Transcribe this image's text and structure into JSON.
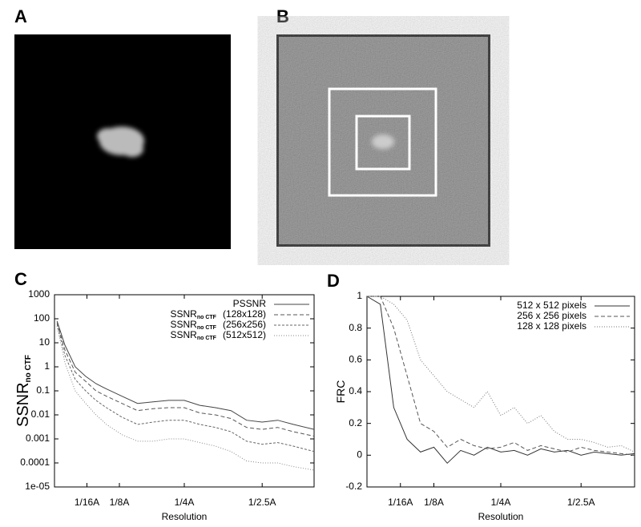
{
  "images": [
    {
      "label": "A"
    },
    {
      "label": "B"
    }
  ],
  "chart_data": [
    {
      "type": "line",
      "label": "C",
      "yscale": "log",
      "ylabel": "SSNR",
      "ylabel_sub": "no CTF",
      "xlabel": "Resolution",
      "xlim": [
        0,
        0.5
      ],
      "xticks": [
        {
          "value": 0.0625,
          "label": "1/16A"
        },
        {
          "value": 0.125,
          "label": "1/8A"
        },
        {
          "value": 0.25,
          "label": "1/4A"
        },
        {
          "value": 0.4,
          "label": "1/2.5A"
        }
      ],
      "ylim": [
        1e-05,
        1000
      ],
      "yticks": [
        1000,
        100,
        10,
        1,
        0.1,
        0.01,
        0.001,
        0.0001,
        {
          "value": 1e-05,
          "label": "1e-05"
        }
      ],
      "legend": "top-right",
      "x": [
        0.005,
        0.02,
        0.04,
        0.06,
        0.08,
        0.1,
        0.13,
        0.16,
        0.19,
        0.22,
        0.25,
        0.28,
        0.31,
        0.34,
        0.37,
        0.4,
        0.43,
        0.46,
        0.5
      ],
      "series": [
        {
          "name": "PSSNR",
          "color": "#444444",
          "dash": "none",
          "values": [
            80,
            8,
            1,
            0.4,
            0.2,
            0.12,
            0.06,
            0.03,
            0.035,
            0.04,
            0.04,
            0.025,
            0.02,
            0.015,
            0.006,
            0.005,
            0.006,
            0.004,
            0.0025
          ]
        },
        {
          "name": "SSNR",
          "name_sub": "no CTF",
          "name_suffix": "(128x128)",
          "color": "#555555",
          "dash": "5 3",
          "values": [
            70,
            5,
            0.6,
            0.25,
            0.1,
            0.06,
            0.03,
            0.015,
            0.018,
            0.02,
            0.02,
            0.012,
            0.01,
            0.007,
            0.003,
            0.0025,
            0.003,
            0.002,
            0.0013
          ]
        },
        {
          "name": "SSNR",
          "name_sub": "no CTF",
          "name_suffix": "(256x256)",
          "color": "#666666",
          "dash": "3 2",
          "values": [
            60,
            3,
            0.3,
            0.1,
            0.04,
            0.02,
            0.008,
            0.004,
            0.005,
            0.006,
            0.006,
            0.004,
            0.003,
            0.002,
            0.0008,
            0.0006,
            0.0007,
            0.0005,
            0.0003
          ]
        },
        {
          "name": "SSNR",
          "name_sub": "no CTF",
          "name_suffix": "(512x512)",
          "color": "#888888",
          "dash": "1 2",
          "values": [
            50,
            1.5,
            0.1,
            0.03,
            0.01,
            0.004,
            0.0015,
            0.0008,
            0.0008,
            0.001,
            0.001,
            0.0007,
            0.0005,
            0.0003,
            0.00012,
            0.0001,
            0.0001,
            7e-05,
            5e-05
          ]
        }
      ]
    },
    {
      "type": "line",
      "label": "D",
      "yscale": "linear",
      "ylabel": "FRC",
      "xlabel": "Resolution",
      "xlim": [
        0,
        0.5
      ],
      "xticks": [
        {
          "value": 0.0625,
          "label": "1/16A"
        },
        {
          "value": 0.125,
          "label": "1/8A"
        },
        {
          "value": 0.25,
          "label": "1/4A"
        },
        {
          "value": 0.4,
          "label": "1/2.5A"
        }
      ],
      "ylim": [
        -0.2,
        1
      ],
      "yticks": [
        -0.2,
        0,
        0.2,
        0.4,
        0.6,
        0.8,
        1
      ],
      "legend": "top-right",
      "x": [
        0,
        0.025,
        0.05,
        0.075,
        0.1,
        0.125,
        0.15,
        0.175,
        0.2,
        0.225,
        0.25,
        0.275,
        0.3,
        0.325,
        0.35,
        0.375,
        0.4,
        0.425,
        0.45,
        0.475,
        0.5
      ],
      "series": [
        {
          "name": "512 x 512 pixels",
          "color": "#333333",
          "dash": "none",
          "values": [
            1,
            0.95,
            0.3,
            0.1,
            0.02,
            0.05,
            -0.05,
            0.03,
            0,
            0.05,
            0.02,
            0.03,
            0,
            0.04,
            0.02,
            0.03,
            0,
            0.02,
            0.01,
            0,
            0.01
          ]
        },
        {
          "name": "256 x 256 pixels",
          "color": "#555555",
          "dash": "5 3",
          "values": [
            1,
            1,
            0.8,
            0.5,
            0.2,
            0.15,
            0.05,
            0.1,
            0.06,
            0.04,
            0.05,
            0.08,
            0.03,
            0.06,
            0.04,
            0.02,
            0.05,
            0.03,
            0.02,
            0.01,
            0
          ]
        },
        {
          "name": "128 x 128 pixels",
          "color": "#777777",
          "dash": "1 2",
          "values": [
            1,
            1,
            0.95,
            0.85,
            0.6,
            0.5,
            0.4,
            0.35,
            0.3,
            0.4,
            0.25,
            0.3,
            0.2,
            0.25,
            0.15,
            0.1,
            0.1,
            0.08,
            0.05,
            0.06,
            0.02
          ]
        }
      ]
    }
  ]
}
